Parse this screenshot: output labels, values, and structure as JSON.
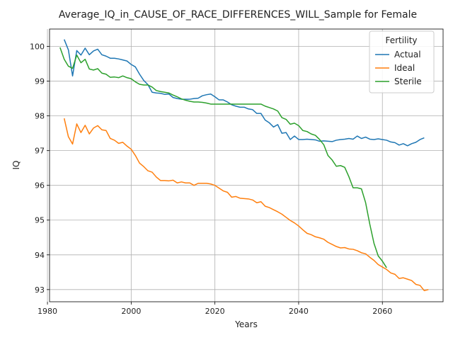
{
  "chart_data": {
    "type": "line",
    "title": "Average_IQ_in_CAUSE_OF_RACE_DIFFERENCES_WILL_Sample for Female",
    "xlabel": "Years",
    "ylabel": "IQ",
    "xlim": [
      1980.5,
      2074.5
    ],
    "ylim": [
      92.65,
      100.5
    ],
    "x_ticks": [
      1980,
      2000,
      2020,
      2040,
      2060
    ],
    "y_ticks": [
      93,
      94,
      95,
      96,
      97,
      98,
      99,
      100
    ],
    "grid": true,
    "legend": {
      "title": "Fertility",
      "position": "top-right"
    },
    "series": [
      {
        "name": "Actual",
        "color": "#1f77b4",
        "points": [
          [
            1984,
            100.2
          ],
          [
            1985,
            99.9
          ],
          [
            1986,
            99.15
          ],
          [
            1987,
            99.88
          ],
          [
            1988,
            99.75
          ],
          [
            1989,
            99.95
          ],
          [
            1990,
            99.76
          ],
          [
            1991,
            99.87
          ],
          [
            1992,
            99.92
          ],
          [
            1993,
            99.76
          ],
          [
            1994,
            99.72
          ],
          [
            1995,
            99.66
          ],
          [
            1996,
            99.66
          ],
          [
            1997,
            99.64
          ],
          [
            1998,
            99.61
          ],
          [
            1999,
            99.58
          ],
          [
            2000,
            99.48
          ],
          [
            2001,
            99.41
          ],
          [
            2002,
            99.2
          ],
          [
            2003,
            99.02
          ],
          [
            2004,
            98.9
          ],
          [
            2005,
            98.68
          ],
          [
            2006,
            98.66
          ],
          [
            2007,
            98.65
          ],
          [
            2008,
            98.62
          ],
          [
            2009,
            98.63
          ],
          [
            2010,
            98.53
          ],
          [
            2011,
            98.5
          ],
          [
            2012,
            98.48
          ],
          [
            2013,
            98.48
          ],
          [
            2014,
            98.48
          ],
          [
            2015,
            98.5
          ],
          [
            2016,
            98.51
          ],
          [
            2017,
            98.58
          ],
          [
            2018,
            98.61
          ],
          [
            2019,
            98.63
          ],
          [
            2020,
            98.55
          ],
          [
            2021,
            98.46
          ],
          [
            2022,
            98.46
          ],
          [
            2023,
            98.4
          ],
          [
            2024,
            98.32
          ],
          [
            2025,
            98.28
          ],
          [
            2026,
            98.25
          ],
          [
            2027,
            98.25
          ],
          [
            2028,
            98.2
          ],
          [
            2029,
            98.18
          ],
          [
            2030,
            98.07
          ],
          [
            2031,
            98.07
          ],
          [
            2032,
            97.88
          ],
          [
            2033,
            97.8
          ],
          [
            2034,
            97.68
          ],
          [
            2035,
            97.75
          ],
          [
            2036,
            97.5
          ],
          [
            2037,
            97.52
          ],
          [
            2038,
            97.32
          ],
          [
            2039,
            97.42
          ],
          [
            2040,
            97.32
          ],
          [
            2041,
            97.32
          ],
          [
            2042,
            97.33
          ],
          [
            2043,
            97.32
          ],
          [
            2044,
            97.31
          ],
          [
            2045,
            97.27
          ],
          [
            2046,
            97.28
          ],
          [
            2047,
            97.27
          ],
          [
            2048,
            97.26
          ],
          [
            2049,
            97.3
          ],
          [
            2050,
            97.32
          ],
          [
            2051,
            97.33
          ],
          [
            2052,
            97.35
          ],
          [
            2053,
            97.33
          ],
          [
            2054,
            97.42
          ],
          [
            2055,
            97.35
          ],
          [
            2056,
            97.39
          ],
          [
            2057,
            97.33
          ],
          [
            2058,
            97.32
          ],
          [
            2059,
            97.34
          ],
          [
            2060,
            97.32
          ],
          [
            2061,
            97.3
          ],
          [
            2062,
            97.25
          ],
          [
            2063,
            97.23
          ],
          [
            2064,
            97.16
          ],
          [
            2065,
            97.2
          ],
          [
            2066,
            97.14
          ],
          [
            2067,
            97.2
          ],
          [
            2068,
            97.24
          ],
          [
            2069,
            97.32
          ],
          [
            2070,
            97.37
          ]
        ]
      },
      {
        "name": "Ideal",
        "color": "#ff7f0e",
        "points": [
          [
            1984,
            97.93
          ],
          [
            1985,
            97.4
          ],
          [
            1986,
            97.19
          ],
          [
            1987,
            97.77
          ],
          [
            1988,
            97.52
          ],
          [
            1989,
            97.73
          ],
          [
            1990,
            97.48
          ],
          [
            1991,
            97.65
          ],
          [
            1992,
            97.72
          ],
          [
            1993,
            97.6
          ],
          [
            1994,
            97.58
          ],
          [
            1995,
            97.35
          ],
          [
            1996,
            97.3
          ],
          [
            1997,
            97.21
          ],
          [
            1998,
            97.24
          ],
          [
            1999,
            97.13
          ],
          [
            2000,
            97.04
          ],
          [
            2001,
            96.86
          ],
          [
            2002,
            96.64
          ],
          [
            2003,
            96.54
          ],
          [
            2004,
            96.42
          ],
          [
            2005,
            96.38
          ],
          [
            2006,
            96.24
          ],
          [
            2007,
            96.14
          ],
          [
            2008,
            96.14
          ],
          [
            2009,
            96.13
          ],
          [
            2010,
            96.15
          ],
          [
            2011,
            96.07
          ],
          [
            2012,
            96.1
          ],
          [
            2013,
            96.07
          ],
          [
            2014,
            96.07
          ],
          [
            2015,
            96.0
          ],
          [
            2016,
            96.06
          ],
          [
            2017,
            96.06
          ],
          [
            2018,
            96.06
          ],
          [
            2019,
            96.04
          ],
          [
            2020,
            96.0
          ],
          [
            2021,
            95.92
          ],
          [
            2022,
            95.84
          ],
          [
            2023,
            95.8
          ],
          [
            2024,
            95.66
          ],
          [
            2025,
            95.68
          ],
          [
            2026,
            95.63
          ],
          [
            2027,
            95.62
          ],
          [
            2028,
            95.61
          ],
          [
            2029,
            95.58
          ],
          [
            2030,
            95.5
          ],
          [
            2031,
            95.53
          ],
          [
            2032,
            95.4
          ],
          [
            2033,
            95.36
          ],
          [
            2034,
            95.3
          ],
          [
            2035,
            95.24
          ],
          [
            2036,
            95.17
          ],
          [
            2037,
            95.08
          ],
          [
            2038,
            94.99
          ],
          [
            2039,
            94.92
          ],
          [
            2040,
            94.83
          ],
          [
            2041,
            94.72
          ],
          [
            2042,
            94.62
          ],
          [
            2043,
            94.58
          ],
          [
            2044,
            94.52
          ],
          [
            2045,
            94.49
          ],
          [
            2046,
            94.45
          ],
          [
            2047,
            94.36
          ],
          [
            2048,
            94.3
          ],
          [
            2049,
            94.24
          ],
          [
            2050,
            94.2
          ],
          [
            2051,
            94.21
          ],
          [
            2052,
            94.17
          ],
          [
            2053,
            94.16
          ],
          [
            2054,
            94.12
          ],
          [
            2055,
            94.06
          ],
          [
            2056,
            94.03
          ],
          [
            2057,
            93.93
          ],
          [
            2058,
            93.84
          ],
          [
            2059,
            93.72
          ],
          [
            2060,
            93.65
          ],
          [
            2061,
            93.58
          ],
          [
            2062,
            93.48
          ],
          [
            2063,
            93.44
          ],
          [
            2064,
            93.32
          ],
          [
            2065,
            93.34
          ],
          [
            2066,
            93.3
          ],
          [
            2067,
            93.26
          ],
          [
            2068,
            93.15
          ],
          [
            2069,
            93.12
          ],
          [
            2070,
            92.97
          ],
          [
            2071,
            93.0
          ]
        ]
      },
      {
        "name": "Sterile",
        "color": "#2ca02c",
        "points": [
          [
            1983,
            99.97
          ],
          [
            1984,
            99.63
          ],
          [
            1985,
            99.43
          ],
          [
            1986,
            99.37
          ],
          [
            1987,
            99.75
          ],
          [
            1988,
            99.53
          ],
          [
            1989,
            99.63
          ],
          [
            1990,
            99.35
          ],
          [
            1991,
            99.32
          ],
          [
            1992,
            99.36
          ],
          [
            1993,
            99.23
          ],
          [
            1994,
            99.2
          ],
          [
            1995,
            99.11
          ],
          [
            1996,
            99.12
          ],
          [
            1997,
            99.1
          ],
          [
            1998,
            99.15
          ],
          [
            1999,
            99.1
          ],
          [
            2000,
            99.07
          ],
          [
            2001,
            98.98
          ],
          [
            2002,
            98.91
          ],
          [
            2003,
            98.89
          ],
          [
            2004,
            98.89
          ],
          [
            2005,
            98.83
          ],
          [
            2006,
            98.73
          ],
          [
            2007,
            98.7
          ],
          [
            2008,
            98.68
          ],
          [
            2009,
            98.66
          ],
          [
            2010,
            98.6
          ],
          [
            2011,
            98.55
          ],
          [
            2012,
            98.49
          ],
          [
            2013,
            98.45
          ],
          [
            2014,
            98.42
          ],
          [
            2015,
            98.4
          ],
          [
            2016,
            98.4
          ],
          [
            2017,
            98.39
          ],
          [
            2018,
            98.37
          ],
          [
            2019,
            98.34
          ],
          [
            2020,
            98.34
          ],
          [
            2021,
            98.34
          ],
          [
            2022,
            98.34
          ],
          [
            2023,
            98.34
          ],
          [
            2024,
            98.34
          ],
          [
            2025,
            98.34
          ],
          [
            2026,
            98.34
          ],
          [
            2027,
            98.34
          ],
          [
            2028,
            98.34
          ],
          [
            2029,
            98.34
          ],
          [
            2030,
            98.34
          ],
          [
            2031,
            98.34
          ],
          [
            2032,
            98.28
          ],
          [
            2033,
            98.24
          ],
          [
            2034,
            98.2
          ],
          [
            2035,
            98.14
          ],
          [
            2036,
            97.95
          ],
          [
            2037,
            97.9
          ],
          [
            2038,
            97.76
          ],
          [
            2039,
            97.79
          ],
          [
            2040,
            97.72
          ],
          [
            2041,
            97.58
          ],
          [
            2042,
            97.55
          ],
          [
            2043,
            97.48
          ],
          [
            2044,
            97.44
          ],
          [
            2045,
            97.32
          ],
          [
            2046,
            97.17
          ],
          [
            2047,
            96.86
          ],
          [
            2048,
            96.73
          ],
          [
            2049,
            96.55
          ],
          [
            2050,
            96.57
          ],
          [
            2051,
            96.52
          ],
          [
            2052,
            96.25
          ],
          [
            2053,
            95.93
          ],
          [
            2054,
            95.93
          ],
          [
            2055,
            95.9
          ],
          [
            2056,
            95.5
          ],
          [
            2057,
            94.88
          ],
          [
            2058,
            94.33
          ],
          [
            2059,
            93.97
          ],
          [
            2060,
            93.82
          ],
          [
            2061,
            93.63
          ]
        ]
      }
    ]
  }
}
